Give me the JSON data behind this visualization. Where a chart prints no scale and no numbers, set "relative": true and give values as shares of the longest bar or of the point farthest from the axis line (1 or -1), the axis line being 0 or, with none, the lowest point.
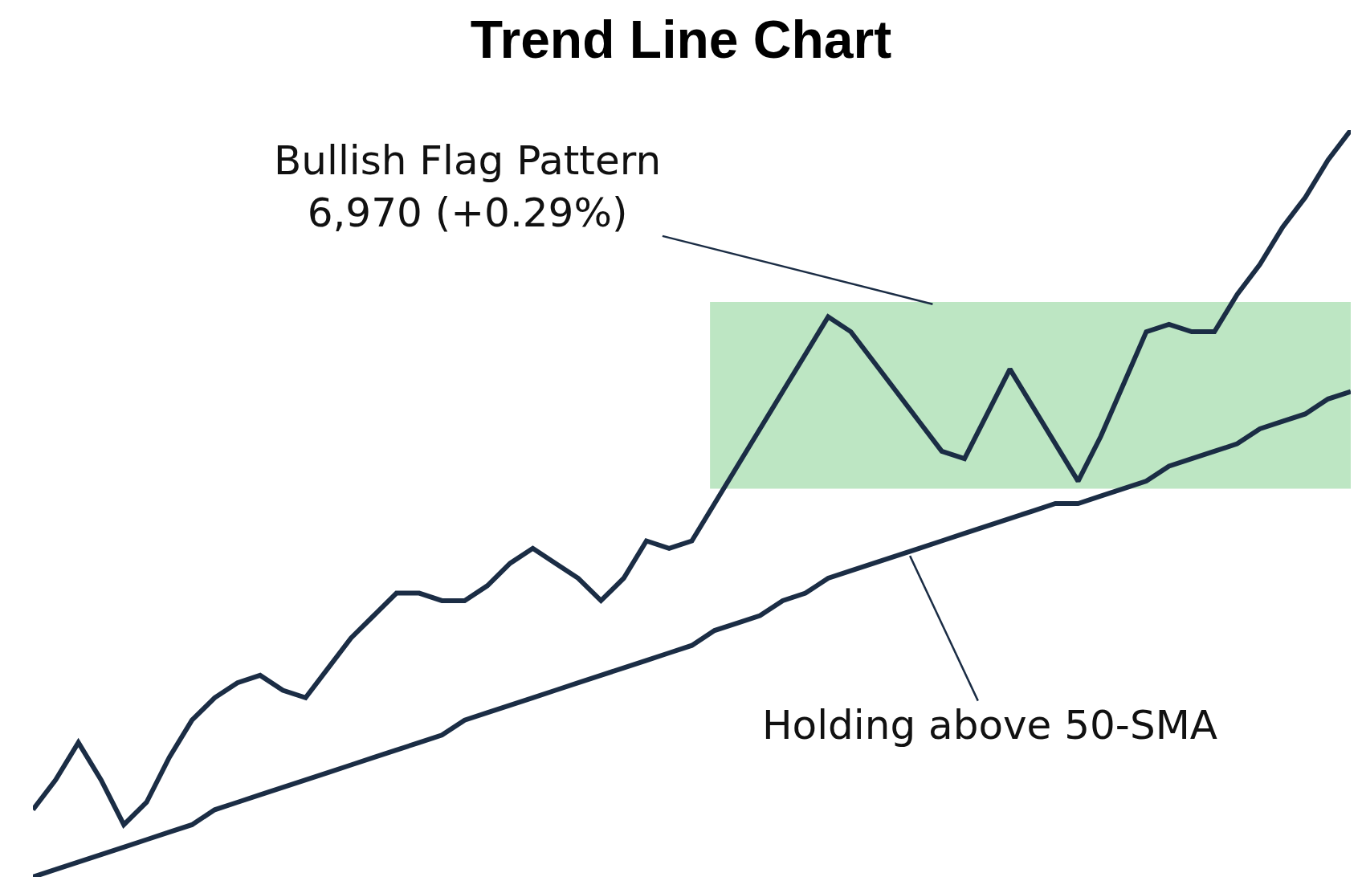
{
  "chart_data": {
    "type": "line",
    "title": "Trend Line Chart",
    "relative": true,
    "categories": [
      null,
      null,
      null,
      null,
      null,
      null,
      null,
      null,
      null,
      null,
      null,
      null,
      null,
      null,
      null,
      null,
      null,
      null,
      null,
      null,
      null,
      null,
      null,
      null,
      null,
      null,
      null,
      null,
      null,
      null,
      null,
      null,
      null,
      null,
      null,
      null,
      null,
      null,
      null,
      null,
      null,
      null,
      null,
      null,
      null,
      null,
      null,
      null,
      null,
      null,
      null,
      null,
      null,
      null,
      null,
      null,
      null,
      null,
      null
    ],
    "series": [
      {
        "color": "#1b2d45",
        "values": [
          0.09,
          0.13,
          0.18,
          0.13,
          0.07,
          0.1,
          0.16,
          0.21,
          0.24,
          0.26,
          0.27,
          0.25,
          0.24,
          0.28,
          0.32,
          0.35,
          0.38,
          0.38,
          0.37,
          0.37,
          0.39,
          0.42,
          0.44,
          0.42,
          0.4,
          0.37,
          0.4,
          0.45,
          0.44,
          0.45,
          0.5,
          0.55,
          0.6,
          0.65,
          0.7,
          0.75,
          0.73,
          0.69,
          0.65,
          0.61,
          0.57,
          0.56,
          0.62,
          0.68,
          0.63,
          0.58,
          0.53,
          0.59,
          0.66,
          0.73,
          0.74,
          0.73,
          0.73,
          0.78,
          0.82,
          0.87,
          0.91,
          0.96,
          1
        ]
      },
      {
        "color": "#1b2d45",
        "values": [
          0,
          0.01,
          0.02,
          0.03,
          0.04,
          0.05,
          0.06,
          0.07,
          0.09,
          0.1,
          0.11,
          0.12,
          0.13,
          0.14,
          0.15,
          0.16,
          0.17,
          0.18,
          0.19,
          0.21,
          0.22,
          0.23,
          0.24,
          0.25,
          0.26,
          0.27,
          0.28,
          0.29,
          0.3,
          0.31,
          0.33,
          0.34,
          0.35,
          0.37,
          0.38,
          0.4,
          0.41,
          0.42,
          0.43,
          0.44,
          0.45,
          0.46,
          0.47,
          0.48,
          0.49,
          0.5,
          0.5,
          0.51,
          0.52,
          0.53,
          0.55,
          0.56,
          0.57,
          0.58,
          0.6,
          0.61,
          0.62,
          0.64,
          0.65
        ]
      }
    ],
    "bands": [
      {
        "axis": "y",
        "from": 0.52,
        "to": 0.77,
        "color": "#bde6c3"
      }
    ],
    "annotations": [
      "Bullish Flag Pattern\n6,970 (+0.29%)",
      "Holding above 50-SMA"
    ],
    "marker": "none",
    "line_style": "solid"
  }
}
